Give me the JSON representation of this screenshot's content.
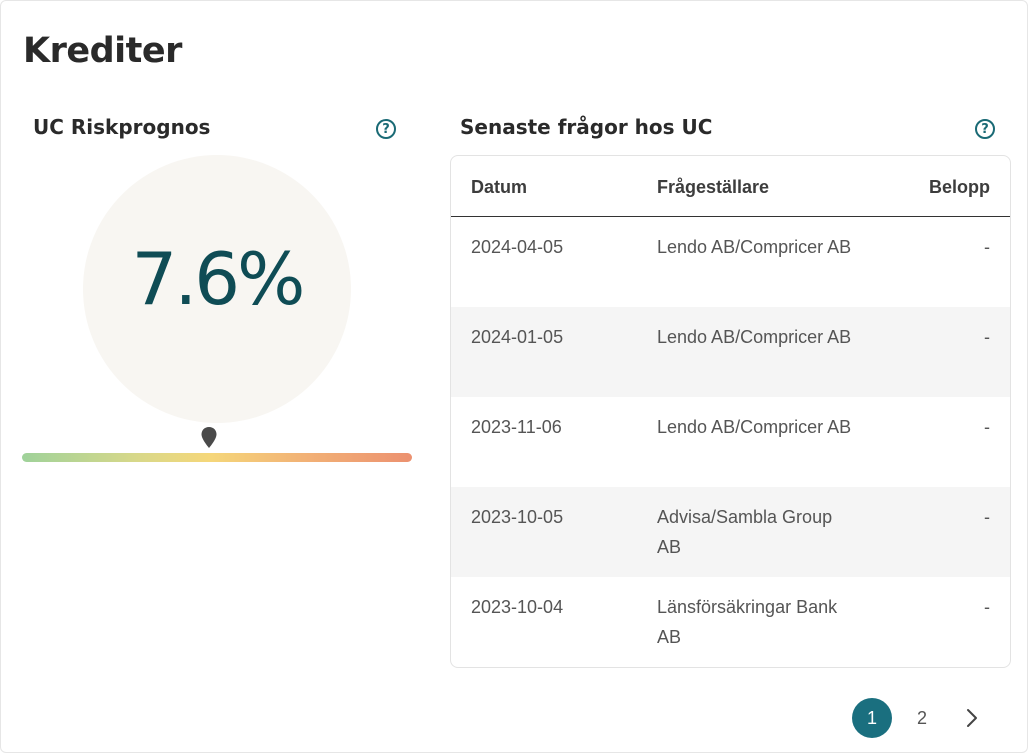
{
  "page": {
    "title": "Krediter"
  },
  "risk": {
    "title": "UC Riskprognos",
    "help_icon": "question-circle-icon",
    "value": "7.6%",
    "scale_position_percent": 48,
    "colors": {
      "value": "#0f4c55",
      "circle_bg": "#f8f6f2"
    }
  },
  "queries": {
    "title": "Senaste frågor hos UC",
    "help_icon": "question-circle-icon",
    "columns": {
      "date": "Datum",
      "asker": "Frågeställare",
      "amount": "Belopp"
    },
    "rows": [
      {
        "date": "2024-04-05",
        "asker": "Lendo AB/Compricer AB",
        "amount": "-"
      },
      {
        "date": "2024-01-05",
        "asker": "Lendo AB/Compricer AB",
        "amount": "-"
      },
      {
        "date": "2023-11-06",
        "asker": "Lendo AB/Compricer AB",
        "amount": "-"
      },
      {
        "date": "2023-10-05",
        "asker": "Advisa/Sambla Group AB",
        "amount": "-"
      },
      {
        "date": "2023-10-04",
        "asker": "Länsförsäkringar Bank AB",
        "amount": "-"
      }
    ]
  },
  "pagination": {
    "pages": [
      "1",
      "2"
    ],
    "current": "1",
    "next_icon": "chevron-right-icon",
    "accent": "#1a6f7f"
  }
}
